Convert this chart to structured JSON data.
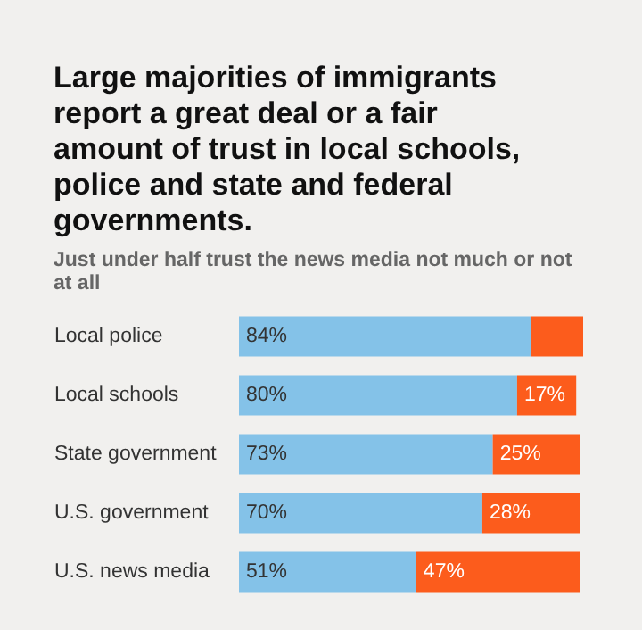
{
  "chart_data": {
    "type": "bar",
    "orientation": "horizontal",
    "stacked": true,
    "title": "Large majorities of immigrants report a great deal or a fair amount of trust in local schools, police and state and federal governments.",
    "subtitle": "Just under half trust the news media not much or not at all",
    "categories": [
      "Local police",
      "Local schools",
      "State government",
      "U.S. government",
      "U.S. news media"
    ],
    "series": [
      {
        "color": "#84c2e8",
        "values": [
          84,
          80,
          73,
          70,
          51
        ],
        "value_labels": [
          "84%",
          "80%",
          "73%",
          "70%",
          "51%"
        ]
      },
      {
        "color": "#fc5c1c",
        "values": [
          15,
          17,
          25,
          28,
          47
        ],
        "value_labels": [
          null,
          "17%",
          "25%",
          "28%",
          "47%"
        ]
      }
    ]
  }
}
